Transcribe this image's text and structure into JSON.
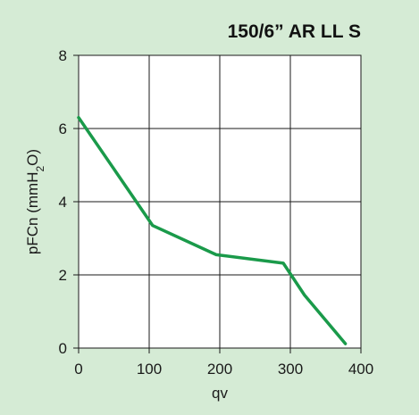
{
  "chart_data": {
    "type": "line",
    "title": "150/6” AR LL S",
    "xlabel": "qv",
    "ylabel_main": "pFCn (mmH",
    "ylabel_sub": "2",
    "ylabel_tail": "O)",
    "xlim": [
      0,
      400
    ],
    "ylim": [
      0,
      8
    ],
    "xticks": [
      0,
      100,
      200,
      300,
      400
    ],
    "yticks": [
      0,
      2,
      4,
      6,
      8
    ],
    "grid": true,
    "series": [
      {
        "x": [
          0,
          105,
          195,
          290,
          320,
          378
        ],
        "y": [
          6.3,
          3.35,
          2.55,
          2.32,
          1.45,
          0.12
        ]
      }
    ],
    "colors": {
      "line": "#1a9a4a",
      "background": "#d5ebd5",
      "plot_bg": "#ffffff",
      "grid": "#1a1a1a"
    }
  }
}
